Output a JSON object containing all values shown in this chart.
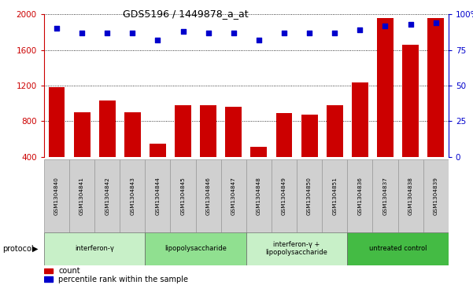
{
  "title": "GDS5196 / 1449878_a_at",
  "samples": [
    "GSM1304840",
    "GSM1304841",
    "GSM1304842",
    "GSM1304843",
    "GSM1304844",
    "GSM1304845",
    "GSM1304846",
    "GSM1304847",
    "GSM1304848",
    "GSM1304849",
    "GSM1304850",
    "GSM1304851",
    "GSM1304836",
    "GSM1304837",
    "GSM1304838",
    "GSM1304839"
  ],
  "counts": [
    1185,
    900,
    1030,
    895,
    545,
    975,
    975,
    960,
    510,
    890,
    870,
    975,
    1230,
    1960,
    1660,
    1960
  ],
  "percentile_ranks": [
    90,
    87,
    87,
    87,
    82,
    88,
    87,
    87,
    82,
    87,
    87,
    87,
    89,
    92,
    93,
    94
  ],
  "groups": [
    {
      "label": "interferon-γ",
      "start": 0,
      "end": 4,
      "color": "#c8f0c8"
    },
    {
      "label": "lipopolysaccharide",
      "start": 4,
      "end": 8,
      "color": "#90e090"
    },
    {
      "label": "interferon-γ +\nlipopolysaccharide",
      "start": 8,
      "end": 12,
      "color": "#c8f0c8"
    },
    {
      "label": "untreated control",
      "start": 12,
      "end": 16,
      "color": "#44bb44"
    }
  ],
  "ylim_left": [
    400,
    2000
  ],
  "ylim_right": [
    0,
    100
  ],
  "yticks_left": [
    400,
    800,
    1200,
    1600,
    2000
  ],
  "yticks_right": [
    0,
    25,
    50,
    75,
    100
  ],
  "bar_color": "#cc0000",
  "dot_color": "#0000cc",
  "label_area_color": "#d0d0d0",
  "protocol_label": "protocol",
  "legend_count": "count",
  "legend_percentile": "percentile rank within the sample"
}
